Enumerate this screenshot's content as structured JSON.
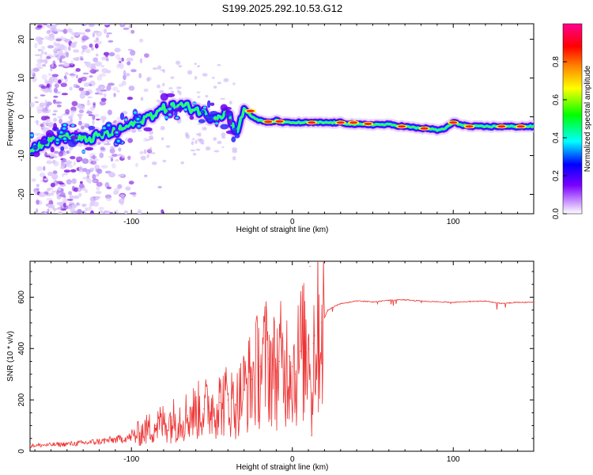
{
  "title": "S199.2025.292.10.53.G12",
  "chart_data": [
    {
      "type": "heatmap",
      "title": "S199.2025.292.10.53.G12",
      "xlabel": "Height of straight line (km)",
      "ylabel": "Frequency (Hz)",
      "xlim": [
        -163,
        150
      ],
      "ylim": [
        -25,
        24
      ],
      "xticks": [
        -100,
        0,
        100
      ],
      "yticks": [
        -20,
        -10,
        0,
        10,
        20
      ],
      "colorbar": {
        "label": "Normalized spectral amplitude",
        "range": [
          0,
          1
        ],
        "ticks": [
          "0.0",
          "0.2",
          "0.4",
          "0.6",
          "0.8"
        ],
        "colors": [
          "#ffffff",
          "#cc99ff",
          "#7a00ff",
          "#0000ff",
          "#00ffff",
          "#00ff00",
          "#ffff00",
          "#ff8000",
          "#ff0000",
          "#ff0090"
        ]
      },
      "ridge": {
        "x": [
          -163,
          -150,
          -140,
          -130,
          -120,
          -110,
          -100,
          -90,
          -80,
          -70,
          -60,
          -50,
          -40,
          -35,
          -30,
          -25,
          -20,
          -15,
          -10,
          -5,
          0,
          5,
          10,
          15,
          20,
          30,
          40,
          50,
          60,
          70,
          80,
          85,
          90,
          95,
          100,
          110,
          120,
          130,
          140,
          150
        ],
        "y": [
          -8,
          -6,
          -5,
          -6,
          -5,
          -4,
          -2,
          0,
          2,
          3,
          2,
          0,
          1,
          -4,
          2,
          0,
          -1,
          -1.5,
          -1,
          -1.5,
          -1.5,
          -1.5,
          -1.5,
          -1.5,
          -1.5,
          -1.5,
          -2,
          -2,
          -2,
          -2.5,
          -3,
          -3,
          -3.5,
          -3,
          -1.5,
          -2.5,
          -2.5,
          -2.5,
          -2.5,
          -2.5
        ]
      }
    },
    {
      "type": "line",
      "xlabel": "Height of straight line (km)",
      "ylabel": "SNR (10 * v/v)",
      "xlim": [
        -163,
        150
      ],
      "ylim": [
        0,
        740
      ],
      "xticks": [
        -100,
        0,
        100
      ],
      "yticks": [
        0,
        200,
        400,
        600
      ],
      "color": "#ee3333",
      "x": [
        -163,
        -150,
        -140,
        -130,
        -120,
        -110,
        -100,
        -95,
        -90,
        -85,
        -80,
        -75,
        -70,
        -65,
        -60,
        -55,
        -50,
        -45,
        -40,
        -35,
        -30,
        -25,
        -20,
        -15,
        -12,
        -10,
        -8,
        -5,
        -2,
        0,
        2,
        5,
        8,
        10,
        11,
        12,
        13,
        14,
        16,
        18,
        20,
        22,
        25,
        28,
        30,
        35,
        40,
        50,
        60,
        70,
        80,
        90,
        100,
        110,
        120,
        130,
        140,
        150
      ],
      "y": [
        22,
        25,
        28,
        32,
        38,
        45,
        55,
        70,
        85,
        100,
        110,
        120,
        130,
        140,
        155,
        165,
        175,
        190,
        200,
        180,
        240,
        280,
        330,
        360,
        320,
        310,
        350,
        300,
        370,
        330,
        300,
        390,
        380,
        400,
        720,
        60,
        420,
        450,
        470,
        500,
        520,
        550,
        560,
        570,
        575,
        580,
        585,
        582,
        588,
        590,
        585,
        582,
        580,
        583,
        585,
        575,
        580,
        580
      ]
    }
  ]
}
